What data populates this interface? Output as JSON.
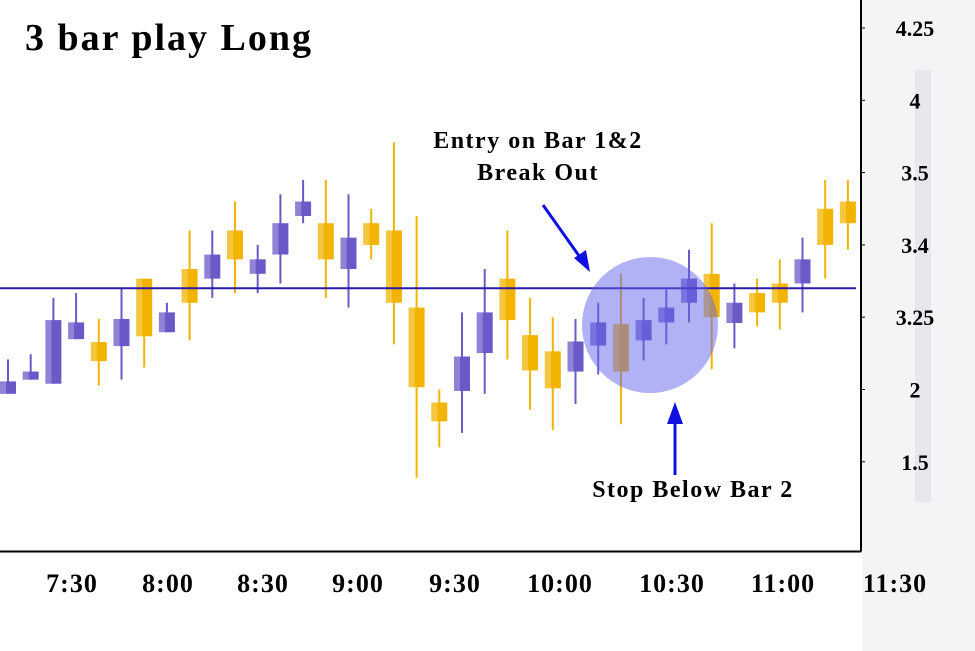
{
  "chart_data": {
    "type": "candlestick",
    "title": "3 bar play Long",
    "annotations": [
      "Entry on Bar 1&2",
      "Break Out",
      "Stop Below Bar 2"
    ],
    "x_labels": [
      "7:30",
      "8:00",
      "8:30",
      "9:00",
      "9:30",
      "10:00",
      "10:30",
      "11:00",
      "11:30"
    ],
    "open": [
      1.97,
      2.17,
      2.1,
      2.87,
      2.82,
      2.75,
      3.33,
      2.99,
      3.35,
      3.33,
      3.42,
      3.34,
      3.38,
      3.44,
      3.43,
      3.35,
      3.43,
      3.42,
      3.27,
      1.91,
      1.99,
      2.63,
      3.33,
      2.94,
      2.66,
      2.31,
      2.76,
      3.13,
      2.85,
      3.16,
      3.28,
      3.34,
      3.15,
      3.3,
      3.32,
      3.32,
      3.45,
      3.46
    ],
    "high": [
      2.52,
      2.61,
      3.29,
      3.3,
      3.22,
      3.31,
      3.33,
      3.28,
      3.42,
      3.42,
      3.46,
      3.4,
      3.47,
      3.49,
      3.49,
      3.47,
      3.45,
      3.71,
      3.44,
      2.0,
      3.26,
      3.35,
      3.42,
      3.29,
      3.25,
      3.22,
      3.28,
      3.34,
      3.29,
      3.31,
      3.39,
      3.43,
      3.32,
      3.33,
      3.37,
      3.41,
      3.49,
      3.49
    ],
    "low": [
      1.97,
      2.17,
      2.1,
      2.87,
      2.07,
      2.17,
      2.38,
      2.99,
      2.85,
      3.29,
      3.3,
      3.3,
      3.32,
      3.43,
      3.29,
      3.27,
      3.37,
      2.78,
      1.39,
      1.6,
      1.7,
      1.97,
      2.52,
      1.86,
      1.72,
      1.9,
      2.26,
      1.76,
      2.5,
      2.78,
      3.16,
      2.35,
      2.71,
      3.09,
      3.04,
      3.26,
      3.33,
      3.39
    ],
    "close": [
      2.14,
      2.31,
      3.2,
      3.16,
      2.49,
      3.22,
      2.92,
      3.26,
      3.28,
      3.38,
      3.37,
      3.37,
      3.43,
      3.46,
      3.37,
      3.41,
      3.4,
      3.28,
      2.04,
      1.78,
      2.57,
      3.26,
      3.2,
      2.33,
      2.02,
      2.83,
      3.16,
      2.31,
      3.2,
      3.27,
      3.33,
      3.25,
      3.28,
      3.26,
      3.28,
      3.37,
      3.4,
      3.43
    ],
    "up_color": "#6a5ac8",
    "down_color": "#f2b400",
    "level_line": 3.31,
    "level_color": "#2a1aa8",
    "yticks": [
      4.25,
      4.0,
      3.5,
      3.4,
      3.25,
      2.0,
      1.5
    ],
    "ylim": [
      0.88,
      4.35
    ]
  }
}
